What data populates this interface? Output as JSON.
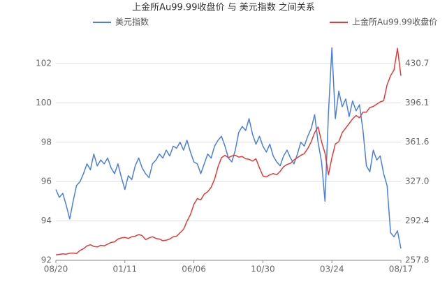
{
  "chart_data": {
    "type": "line",
    "title": "上金所Au99.99收盘价 与 美元指数 之间关系",
    "categories": [
      "08/20",
      null,
      null,
      null,
      null,
      null,
      null,
      null,
      null,
      null,
      null,
      null,
      null,
      null,
      null,
      null,
      null,
      null,
      null,
      null,
      "01/11",
      null,
      null,
      null,
      null,
      null,
      null,
      null,
      null,
      null,
      null,
      null,
      null,
      null,
      null,
      null,
      null,
      null,
      null,
      null,
      "06/06",
      null,
      null,
      null,
      null,
      null,
      null,
      null,
      null,
      null,
      null,
      null,
      null,
      null,
      null,
      null,
      null,
      null,
      null,
      null,
      "10/30",
      null,
      null,
      null,
      null,
      null,
      null,
      null,
      null,
      null,
      null,
      null,
      null,
      null,
      null,
      null,
      null,
      null,
      null,
      null,
      "03/24",
      null,
      null,
      null,
      null,
      null,
      null,
      null,
      null,
      null,
      null,
      null,
      null,
      null,
      null,
      null,
      null,
      null,
      null,
      null,
      "08/17"
    ],
    "series": [
      {
        "name": "美元指数",
        "color": "#4b7fdf",
        "values": [
          95.6,
          95.2,
          95.4,
          94.8,
          94.1,
          95.0,
          95.8,
          96.0,
          96.4,
          96.9,
          96.6,
          97.4,
          96.8,
          97.1,
          96.9,
          97.2,
          96.7,
          96.4,
          96.9,
          96.2,
          95.6,
          96.3,
          96.1,
          96.8,
          97.2,
          96.7,
          96.4,
          96.2,
          96.9,
          97.1,
          97.4,
          97.2,
          97.6,
          97.3,
          97.8,
          97.7,
          98.0,
          97.6,
          98.1,
          97.5,
          97.0,
          96.9,
          96.4,
          96.9,
          97.4,
          97.2,
          97.8,
          98.1,
          98.3,
          97.8,
          97.2,
          97.0,
          97.6,
          98.5,
          98.8,
          98.6,
          99.2,
          98.4,
          97.9,
          98.3,
          97.8,
          97.5,
          97.9,
          97.3,
          97.0,
          96.8,
          97.3,
          97.6,
          97.2,
          96.9,
          97.4,
          98.0,
          97.8,
          98.3,
          98.7,
          99.4,
          98.0,
          97.0,
          95.0,
          99.5,
          102.8,
          99.2,
          100.6,
          99.8,
          100.2,
          99.3,
          100.1,
          99.6,
          99.9,
          98.6,
          96.8,
          96.5,
          97.6,
          97.1,
          97.3,
          96.4,
          95.8,
          93.4,
          93.2,
          93.5,
          92.6
        ]
      },
      {
        "name": "上金所Au99.99收盘价",
        "color": "#e23b3b",
        "axis": "y2",
        "values": [
          262.5,
          263.0,
          263.5,
          263.2,
          264.0,
          264.2,
          263.8,
          266.5,
          268.0,
          270.5,
          271.5,
          270.0,
          269.5,
          271.0,
          270.5,
          272.0,
          273.5,
          274.0,
          276.5,
          277.5,
          278.0,
          277.0,
          278.5,
          279.0,
          280.5,
          279.5,
          276.0,
          277.5,
          278.5,
          277.0,
          276.5,
          275.0,
          275.5,
          276.5,
          278.5,
          279.0,
          282.0,
          285.0,
          292.0,
          298.0,
          307.0,
          312.0,
          311.0,
          316.0,
          318.0,
          322.0,
          329.0,
          340.0,
          348.0,
          350.0,
          348.0,
          349.5,
          350.0,
          348.5,
          349.0,
          347.0,
          346.5,
          345.0,
          347.0,
          339.0,
          332.0,
          331.0,
          333.0,
          334.0,
          333.0,
          336.0,
          340.0,
          342.0,
          343.0,
          346.0,
          348.0,
          350.0,
          351.5,
          356.0,
          362.0,
          370.0,
          375.0,
          362.0,
          352.0,
          333.0,
          348.0,
          360.0,
          362.0,
          370.0,
          374.0,
          378.0,
          382.0,
          385.0,
          383.0,
          388.0,
          388.0,
          392.0,
          393.0,
          395.0,
          397.0,
          398.0,
          412.0,
          420.0,
          425.0,
          444.0,
          420.0
        ]
      }
    ],
    "ylim": [
      92,
      103
    ],
    "yticks": [
      92,
      94,
      96,
      98,
      100,
      102
    ],
    "y2lim": [
      257.8,
      448.0
    ],
    "y2ticks": [
      257.8,
      292.4,
      {
        "value": 327,
        "label": "327.0"
      },
      361.6,
      396.1,
      430.7
    ],
    "grid": true
  }
}
